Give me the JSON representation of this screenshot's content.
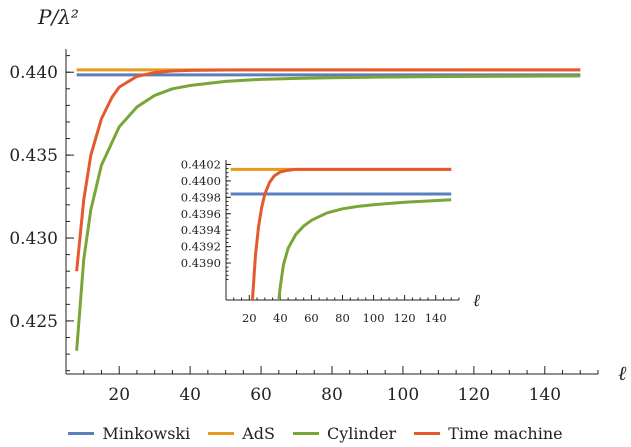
{
  "chart_data": [
    {
      "type": "line",
      "title": "",
      "xlabel": "ℓ",
      "ylabel": "P/λ²",
      "xlim": [
        5,
        155
      ],
      "ylim": [
        0.4218,
        0.4414
      ],
      "xticks": [
        20,
        40,
        60,
        80,
        100,
        120,
        140
      ],
      "xtick_labels": [
        "20",
        "40",
        "60",
        "80",
        "100",
        "120",
        "140"
      ],
      "yticks": [
        0.425,
        0.43,
        0.435,
        0.44
      ],
      "ytick_labels": [
        "0.425",
        "0.430",
        "0.435",
        "0.440"
      ],
      "legend_position": "bottom",
      "series": [
        {
          "name": "Minkowski",
          "color": "#5b7fbd",
          "x": [
            8,
            150
          ],
          "y": [
            0.43984,
            0.43984
          ]
        },
        {
          "name": "AdS",
          "color": "#e59a1c",
          "x": [
            8,
            150
          ],
          "y": [
            0.44014,
            0.44014
          ]
        },
        {
          "name": "Cylinder",
          "color": "#79a637",
          "x": [
            8,
            10,
            12,
            15,
            20,
            25,
            30,
            35,
            40,
            50,
            60,
            70,
            80,
            90,
            100,
            120,
            150
          ],
          "y": [
            0.4232,
            0.4287,
            0.4317,
            0.4344,
            0.4367,
            0.4379,
            0.4386,
            0.439,
            0.4392,
            0.43945,
            0.43957,
            0.43963,
            0.43967,
            0.4397,
            0.43972,
            0.43975,
            0.43978
          ]
        },
        {
          "name": "Time machine",
          "color": "#e6592f",
          "x": [
            8,
            10,
            12,
            15,
            18,
            20,
            25,
            30,
            35,
            40,
            50,
            60,
            80,
            100,
            150
          ],
          "y": [
            0.428,
            0.4323,
            0.435,
            0.4372,
            0.4385,
            0.4391,
            0.43975,
            0.43998,
            0.44007,
            0.44011,
            0.44013,
            0.44014,
            0.44014,
            0.44014,
            0.44014
          ]
        }
      ]
    },
    {
      "type": "line",
      "title": "",
      "xlabel": "ℓ",
      "ylabel": "",
      "xlim": [
        5,
        155
      ],
      "ylim": [
        0.43855,
        0.44023
      ],
      "xticks": [
        20,
        40,
        60,
        80,
        100,
        120,
        140
      ],
      "xtick_labels": [
        "20",
        "40",
        "60",
        "80",
        "100",
        "120",
        "140"
      ],
      "yticks": [
        0.439,
        0.4392,
        0.4394,
        0.4396,
        0.4398,
        0.44,
        0.4402
      ],
      "ytick_labels": [
        "0.4390",
        "0.4392",
        "0.4394",
        "0.4396",
        "0.4398",
        "0.4400",
        "0.4402"
      ],
      "series": [
        {
          "name": "Minkowski",
          "color": "#5b7fbd",
          "x": [
            8,
            150
          ],
          "y": [
            0.43984,
            0.43984
          ]
        },
        {
          "name": "AdS",
          "color": "#e59a1c",
          "x": [
            8,
            150
          ],
          "y": [
            0.44014,
            0.44014
          ]
        },
        {
          "name": "Cylinder",
          "color": "#79a637",
          "x": [
            39,
            40,
            42,
            45,
            50,
            55,
            60,
            70,
            80,
            90,
            100,
            120,
            150
          ],
          "y": [
            0.43855,
            0.43872,
            0.43898,
            0.43918,
            0.43935,
            0.43945,
            0.43952,
            0.43961,
            0.43966,
            0.43969,
            0.43971,
            0.43974,
            0.43977
          ]
        },
        {
          "name": "Time machine",
          "color": "#e6592f",
          "x": [
            22,
            24,
            26,
            28,
            30,
            33,
            36,
            40,
            45,
            50,
            60,
            80,
            100,
            150
          ],
          "y": [
            0.43855,
            0.4391,
            0.43945,
            0.43968,
            0.43984,
            0.43998,
            0.44006,
            0.44011,
            0.44013,
            0.44014,
            0.44014,
            0.44014,
            0.44014,
            0.44014
          ]
        }
      ]
    }
  ]
}
